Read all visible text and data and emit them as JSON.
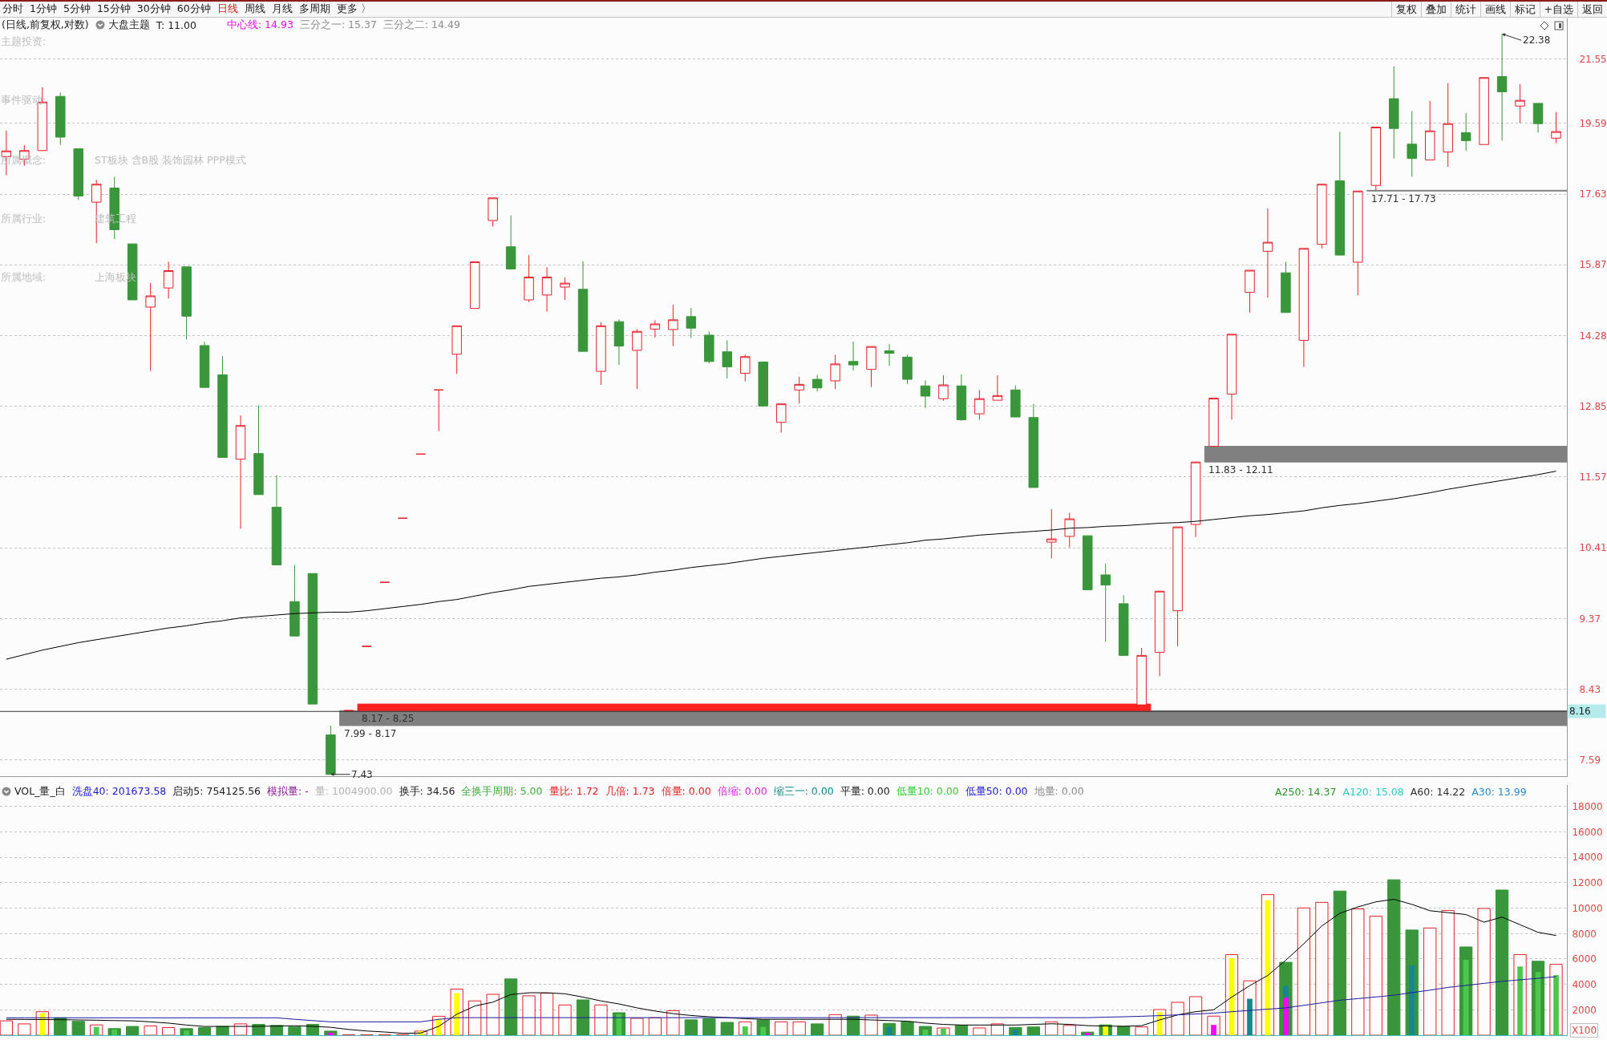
{
  "chart_data": [
    {
      "type": "other",
      "annotations": [
        "分时",
        "1分钟",
        "5分钟",
        "15分钟",
        "30分钟",
        "60分钟",
        "日线",
        "周线",
        "月线",
        "多周期",
        "更多 〉"
      ]
    },
    {
      "type": "other",
      "annotations": [
        "复权",
        "叠加",
        "统计",
        "画线",
        "标记",
        "+自选",
        "返回"
      ]
    },
    {
      "type": "candlestick",
      "title": "(日线,前复权,对数)",
      "categories": [
        null,
        null,
        null,
        null,
        null,
        null,
        null,
        null,
        null,
        null,
        null,
        null,
        null,
        null,
        null,
        null,
        null,
        null,
        null,
        null,
        null,
        null,
        null,
        null,
        null,
        null,
        null,
        null,
        null,
        null,
        null,
        null,
        null,
        null,
        null,
        null,
        null,
        null,
        null,
        null,
        null,
        null,
        null,
        null,
        null,
        null,
        null,
        null,
        null,
        null,
        null,
        null,
        null,
        null,
        null,
        null,
        null,
        null,
        null,
        null,
        null,
        null,
        null,
        null,
        null,
        null,
        null,
        null,
        null,
        null,
        null,
        null,
        null,
        null,
        null,
        null,
        null,
        null,
        null,
        null,
        null,
        null,
        null,
        null,
        null,
        null,
        null
      ],
      "ohlc": [
        [
          18.64,
          19.38,
          18.13,
          18.8
        ],
        [
          18.57,
          18.96,
          18.39,
          18.81
        ],
        [
          18.81,
          20.67,
          18.81,
          20.22
        ],
        [
          20.39,
          20.51,
          18.97,
          19.19
        ],
        [
          18.86,
          18.86,
          17.48,
          17.58
        ],
        [
          17.42,
          18.01,
          16.39,
          17.89
        ],
        [
          17.79,
          18.09,
          16.49,
          16.72
        ],
        [
          16.37,
          16.37,
          15.06,
          15.06
        ],
        [
          14.9,
          15.44,
          13.55,
          15.15
        ],
        [
          15.33,
          15.94,
          15.09,
          15.73
        ],
        [
          15.82,
          15.82,
          14.2,
          14.7
        ],
        [
          14.07,
          14.15,
          13.22,
          13.22
        ],
        [
          13.47,
          13.85,
          11.91,
          11.91
        ],
        [
          11.88,
          12.68,
          10.71,
          12.49
        ],
        [
          11.98,
          12.87,
          11.27,
          11.27
        ],
        [
          11.06,
          11.6,
          10.15,
          10.15
        ],
        [
          9.61,
          10.15,
          9.13,
          9.13
        ],
        [
          10.02,
          10.02,
          8.25,
          8.25
        ],
        [
          7.88,
          7.99,
          7.43,
          7.43
        ],
        [
          8.17,
          8.17,
          8.17,
          8.17
        ],
        [
          8.99,
          8.99,
          8.99,
          8.99
        ],
        [
          9.89,
          9.89,
          9.89,
          9.89
        ],
        [
          10.88,
          10.88,
          10.88,
          10.88
        ],
        [
          11.97,
          11.97,
          11.97,
          11.97
        ],
        [
          13.17,
          13.17,
          12.39,
          13.17
        ],
        [
          13.89,
          14.49,
          13.49,
          14.49
        ],
        [
          14.87,
          15.94,
          14.87,
          15.94
        ],
        [
          16.95,
          17.53,
          16.8,
          17.53
        ],
        [
          16.3,
          17.08,
          15.77,
          15.77
        ],
        [
          15.06,
          16.1,
          15.01,
          15.58
        ],
        [
          15.17,
          15.81,
          14.8,
          15.58
        ],
        [
          15.35,
          15.57,
          15.06,
          15.44
        ],
        [
          15.3,
          15.95,
          13.95,
          13.95
        ],
        [
          13.54,
          14.57,
          13.27,
          14.49
        ],
        [
          14.58,
          14.63,
          13.67,
          14.06
        ],
        [
          13.97,
          14.42,
          13.19,
          14.37
        ],
        [
          14.42,
          14.61,
          14.24,
          14.53
        ],
        [
          14.41,
          14.95,
          14.06,
          14.62
        ],
        [
          14.69,
          14.88,
          14.23,
          14.44
        ],
        [
          14.29,
          14.37,
          13.7,
          13.74
        ],
        [
          13.94,
          14.18,
          13.4,
          13.63
        ],
        [
          13.5,
          13.88,
          13.34,
          13.84
        ],
        [
          13.73,
          13.73,
          12.84,
          12.86
        ],
        [
          12.55,
          12.9,
          12.36,
          12.9
        ],
        [
          13.17,
          13.43,
          12.91,
          13.28
        ],
        [
          13.38,
          13.47,
          13.14,
          13.21
        ],
        [
          13.35,
          13.88,
          13.19,
          13.69
        ],
        [
          13.74,
          14.15,
          13.56,
          13.67
        ],
        [
          13.58,
          14.05,
          13.23,
          14.05
        ],
        [
          13.96,
          14.1,
          13.65,
          13.91
        ],
        [
          13.83,
          13.88,
          13.29,
          13.38
        ],
        [
          13.25,
          13.36,
          12.82,
          13.05
        ],
        [
          13.0,
          13.46,
          12.96,
          13.27
        ],
        [
          13.25,
          13.48,
          12.58,
          12.6
        ],
        [
          12.71,
          13.17,
          12.6,
          13.0
        ],
        [
          12.97,
          13.46,
          12.97,
          13.06
        ],
        [
          13.17,
          13.26,
          12.65,
          12.65
        ],
        [
          12.64,
          12.9,
          11.39,
          11.39
        ],
        [
          10.5,
          11.03,
          10.25,
          10.55
        ],
        [
          10.59,
          10.97,
          10.42,
          10.87
        ],
        [
          10.6,
          10.6,
          9.78,
          9.78
        ],
        [
          10.0,
          10.17,
          9.05,
          9.85
        ],
        [
          9.58,
          9.7,
          8.87,
          8.87
        ],
        [
          8.24,
          8.97,
          8.22,
          8.87
        ],
        [
          8.91,
          9.76,
          8.6,
          9.76
        ],
        [
          9.48,
          10.74,
          8.99,
          10.74
        ],
        [
          10.78,
          11.83,
          10.58,
          11.83
        ],
        [
          12.11,
          13.01,
          12.11,
          13.01
        ],
        [
          13.09,
          14.31,
          12.6,
          14.31
        ],
        [
          15.23,
          15.74,
          14.78,
          15.74
        ],
        [
          16.19,
          17.26,
          15.11,
          16.41
        ],
        [
          15.68,
          15.94,
          14.78,
          14.78
        ],
        [
          14.18,
          16.26,
          13.63,
          16.26
        ],
        [
          16.36,
          17.89,
          16.26,
          17.89
        ],
        [
          17.98,
          19.34,
          16.1,
          16.1
        ],
        [
          15.93,
          17.71,
          15.16,
          17.71
        ],
        [
          17.86,
          19.48,
          17.73,
          19.48
        ],
        [
          20.32,
          21.32,
          18.59,
          19.44
        ],
        [
          18.99,
          19.95,
          18.09,
          18.59
        ],
        [
          18.55,
          20.25,
          18.55,
          19.37
        ],
        [
          18.77,
          20.8,
          18.36,
          19.58
        ],
        [
          19.32,
          19.89,
          18.8,
          19.09
        ],
        [
          18.98,
          20.97,
          18.98,
          20.97
        ],
        [
          21.0,
          22.38,
          19.09,
          20.53
        ],
        [
          20.1,
          20.76,
          19.6,
          20.27
        ],
        [
          20.18,
          20.18,
          19.32,
          19.58
        ],
        [
          19.16,
          19.92,
          19.02,
          19.35
        ]
      ],
      "value_labels": [
        null,
        null,
        null,
        null,
        null,
        null,
        null,
        null,
        null,
        null,
        null,
        null,
        null,
        null,
        null,
        null,
        null,
        null,
        "7.43",
        null,
        null,
        null,
        null,
        null,
        null,
        null,
        null,
        null,
        null,
        null,
        null,
        null,
        null,
        null,
        null,
        null,
        null,
        null,
        null,
        null,
        null,
        null,
        null,
        null,
        null,
        null,
        null,
        null,
        null,
        null,
        null,
        null,
        null,
        null,
        null,
        null,
        null,
        null,
        null,
        null,
        null,
        null,
        null,
        null,
        null,
        null,
        null,
        null,
        null,
        null,
        null,
        null,
        null,
        null,
        null,
        null,
        null,
        null,
        null,
        null,
        null,
        null,
        null,
        "22.38",
        null,
        null,
        null
      ],
      "colors": [
        "#e8202c",
        "#e8202c",
        "#e8202c",
        "#3a963a",
        "#3a963a",
        "#e8202c",
        "#3a963a",
        "#3a963a",
        "#e8202c",
        "#e8202c",
        "#3a963a",
        "#3a963a",
        "#3a963a",
        "#e8202c",
        "#3a963a",
        "#3a963a",
        "#3a963a",
        "#3a963a",
        "#3a963a",
        "#e8202c",
        "#e8202c",
        "#e8202c",
        "#e8202c",
        "#e8202c",
        "#e8202c",
        "#e8202c",
        "#e8202c",
        "#e8202c",
        "#3a963a",
        "#e8202c",
        "#e8202c",
        "#e8202c",
        "#3a963a",
        "#e8202c",
        "#3a963a",
        "#e8202c",
        "#e8202c",
        "#e8202c",
        "#3a963a",
        "#3a963a",
        "#3a963a",
        "#e8202c",
        "#3a963a",
        "#e8202c",
        "#e8202c",
        "#3a963a",
        "#e8202c",
        "#3a963a",
        "#e8202c",
        "#3a963a",
        "#3a963a",
        "#3a963a",
        "#e8202c",
        "#3a963a",
        "#e8202c",
        "#e8202c",
        "#3a963a",
        "#3a963a",
        "#e8202c",
        "#e8202c",
        "#3a963a",
        "#3a963a",
        "#3a963a",
        "#e8202c",
        "#e8202c",
        "#e8202c",
        "#e8202c",
        "#e8202c",
        "#e8202c",
        "#e8202c",
        "#e8202c",
        "#3a963a",
        "#e8202c",
        "#e8202c",
        "#3a963a",
        "#e8202c",
        "#e8202c",
        "#3a963a",
        "#3a963a",
        "#e8202c",
        "#e8202c",
        "#3a963a",
        "#e8202c",
        "#3a963a",
        "#e8202c",
        "#3a963a",
        "#e8202c"
      ],
      "series": [
        {
          "type": "line",
          "color": "#000000",
          "values": [
            8.82,
            8.88,
            8.94,
            8.99,
            9.04,
            9.08,
            9.12,
            9.16,
            9.2,
            9.24,
            9.27,
            9.31,
            9.34,
            9.38,
            9.4,
            9.42,
            9.44,
            9.45,
            9.46,
            9.46,
            9.48,
            9.51,
            9.54,
            9.57,
            9.61,
            9.64,
            9.69,
            9.74,
            9.78,
            9.83,
            9.86,
            9.89,
            9.92,
            9.95,
            9.97,
            10.0,
            10.04,
            10.07,
            10.11,
            10.14,
            10.17,
            10.21,
            10.25,
            10.28,
            10.31,
            10.34,
            10.37,
            10.4,
            10.43,
            10.46,
            10.49,
            10.53,
            10.55,
            10.58,
            10.61,
            10.63,
            10.65,
            10.67,
            10.69,
            10.72,
            10.73,
            10.75,
            10.76,
            10.78,
            10.8,
            10.81,
            10.83,
            10.86,
            10.89,
            10.92,
            10.94,
            10.97,
            11.0,
            11.05,
            11.09,
            11.12,
            11.16,
            11.2,
            11.25,
            11.3,
            11.36,
            11.41,
            11.46,
            11.51,
            11.56,
            11.61,
            11.67
          ]
        }
      ],
      "ylim": [
        7.41,
        22.9
      ],
      "yticks": [
        7.59,
        8.43,
        9.37,
        10.41,
        11.57,
        12.85,
        14.28,
        15.87,
        17.63,
        19.59,
        21.55
      ],
      "log": true,
      "grid": "y",
      "tick_labels": "y",
      "bands": [
        {
          "axis": "y",
          "from": 7.99,
          "to": 8.17,
          "label": "7.99 - 8.17",
          "color": "#808080"
        },
        {
          "axis": "y",
          "from": 8.17,
          "to": 8.25,
          "label": "8.17 - 8.25",
          "color": "#ff2020"
        },
        {
          "axis": "y",
          "from": 11.83,
          "to": 12.11,
          "label": "11.83 - 12.11",
          "color": "#808080"
        },
        {
          "axis": "y",
          "from": 17.71,
          "to": 17.73,
          "label": "17.71 - 17.73",
          "color": "#808080"
        }
      ],
      "ref_lines": [
        {
          "axis": "y",
          "value": 8.16,
          "label": "8.16",
          "color": "#303030"
        }
      ],
      "annotations": [
        "大盘主题",
        "T: 11.00",
        "中心线: 14.93",
        "三分之一: 15.37",
        "三分之二: 14.49",
        "主题投资:",
        "事件驱动:",
        "所属概念:",
        "ST板块 含B股 装饰园林 PPP模式",
        "所属行业:",
        "建筑工程",
        "所属地域:",
        "上海板块"
      ]
    },
    {
      "type": "bar",
      "title": "VOL_量_白",
      "ylabel": "X100",
      "categories": [
        null,
        null,
        null,
        null,
        null,
        null,
        null,
        null,
        null,
        null,
        null,
        null,
        null,
        null,
        null,
        null,
        null,
        null,
        null,
        null,
        null,
        null,
        null,
        null,
        null,
        null,
        null,
        null,
        null,
        null,
        null,
        null,
        null,
        null,
        null,
        null,
        null,
        null,
        null,
        null,
        null,
        null,
        null,
        null,
        null,
        null,
        null,
        null,
        null,
        null,
        null,
        null,
        null,
        null,
        null,
        null,
        null,
        null,
        null,
        null,
        null,
        null,
        null,
        null,
        null,
        null,
        null,
        null,
        null,
        null,
        null,
        null,
        null,
        null,
        null,
        null,
        null,
        null,
        null,
        null,
        null,
        null,
        null,
        null,
        null,
        null,
        null
      ],
      "series": [
        {
          "colors": [
            "#e8202c",
            "#e8202c",
            "#e8202c",
            "#3a963a",
            "#3a963a",
            "#e8202c",
            "#3a963a",
            "#3a963a",
            "#e8202c",
            "#e8202c",
            "#3a963a",
            "#3a963a",
            "#3a963a",
            "#e8202c",
            "#3a963a",
            "#3a963a",
            "#3a963a",
            "#3a963a",
            "#3a963a",
            "#e8202c",
            "#e8202c",
            "#e8202c",
            "#e8202c",
            "#e8202c",
            "#e8202c",
            "#e8202c",
            "#e8202c",
            "#e8202c",
            "#3a963a",
            "#e8202c",
            "#e8202c",
            "#e8202c",
            "#3a963a",
            "#e8202c",
            "#3a963a",
            "#e8202c",
            "#e8202c",
            "#e8202c",
            "#3a963a",
            "#3a963a",
            "#3a963a",
            "#e8202c",
            "#3a963a",
            "#e8202c",
            "#e8202c",
            "#3a963a",
            "#e8202c",
            "#3a963a",
            "#e8202c",
            "#3a963a",
            "#3a963a",
            "#3a963a",
            "#e8202c",
            "#3a963a",
            "#e8202c",
            "#e8202c",
            "#3a963a",
            "#3a963a",
            "#e8202c",
            "#e8202c",
            "#3a963a",
            "#3a963a",
            "#3a963a",
            "#e8202c",
            "#e8202c",
            "#e8202c",
            "#e8202c",
            "#e8202c",
            "#e8202c",
            "#e8202c",
            "#e8202c",
            "#3a963a",
            "#e8202c",
            "#e8202c",
            "#3a963a",
            "#e8202c",
            "#e8202c",
            "#3a963a",
            "#3a963a",
            "#e8202c",
            "#e8202c",
            "#3a963a",
            "#e8202c",
            "#3a963a",
            "#e8202c",
            "#3a963a",
            "#e8202c"
          ],
          "values": [
            1130,
            890,
            1850,
            1370,
            1090,
            810,
            520,
            690,
            730,
            600,
            520,
            600,
            690,
            890,
            850,
            770,
            650,
            850,
            320,
            40,
            30,
            30,
            40,
            320,
            1490,
            3630,
            2700,
            3220,
            4430,
            3100,
            3310,
            2380,
            2780,
            2380,
            1770,
            1330,
            1370,
            1930,
            1210,
            1290,
            1010,
            1050,
            1210,
            1050,
            1050,
            890,
            1620,
            1500,
            1580,
            930,
            1050,
            690,
            570,
            770,
            570,
            890,
            610,
            650,
            1050,
            770,
            240,
            810,
            690,
            650,
            2020,
            2590,
            3030,
            1500,
            6340,
            4280,
            11070,
            5740,
            10020,
            10460,
            11350,
            9940,
            9370,
            12240,
            8280,
            8440,
            9820,
            6950,
            9980,
            11430,
            6340,
            5820,
            5580
          ]
        },
        {
          "colors": [
            null,
            null,
            "#ffff00",
            null,
            null,
            "#4cc84c",
            "#4cc84c",
            null,
            null,
            null,
            "#4cc84c",
            null,
            null,
            null,
            null,
            null,
            null,
            null,
            "#ff00ff",
            null,
            null,
            null,
            null,
            "#ffff00",
            "#ffff00",
            "#ffff00",
            null,
            null,
            null,
            null,
            null,
            null,
            null,
            null,
            "#4cc84c",
            null,
            null,
            null,
            null,
            null,
            null,
            "#4cc84c",
            "#4cc84c",
            null,
            null,
            null,
            null,
            null,
            null,
            "#17868e",
            null,
            "#4cc84c",
            "#4cc84c",
            null,
            null,
            null,
            "#17868e",
            null,
            null,
            null,
            "#ff00ff",
            "#ffff00",
            null,
            null,
            "#ffff00",
            null,
            null,
            "#ff00ff",
            "#ffff00",
            "#17868e",
            "#ffff00",
            "#17868e",
            null,
            null,
            null,
            null,
            null,
            null,
            "#17868e",
            null,
            null,
            "#4cc84c",
            null,
            null,
            "#4cc84c",
            "#4cc84c",
            "#4cc84c"
          ],
          "values": [
            null,
            null,
            1730,
            null,
            null,
            650,
            440,
            null,
            null,
            null,
            360,
            null,
            null,
            null,
            null,
            null,
            null,
            null,
            200,
            null,
            null,
            null,
            null,
            320,
            1290,
            3310,
            null,
            null,
            null,
            null,
            null,
            null,
            null,
            null,
            1650,
            null,
            null,
            null,
            null,
            null,
            null,
            690,
            650,
            null,
            null,
            null,
            null,
            null,
            null,
            650,
            null,
            440,
            520,
            null,
            null,
            null,
            440,
            null,
            null,
            null,
            200,
            760,
            null,
            null,
            1820,
            null,
            null,
            810,
            6060,
            2870,
            10630,
            3880,
            null,
            null,
            null,
            null,
            null,
            null,
            5490,
            null,
            null,
            5940,
            null,
            null,
            5410,
            4970,
            4730
          ]
        },
        {
          "colors": [
            null,
            null,
            null,
            null,
            null,
            null,
            null,
            null,
            null,
            null,
            null,
            null,
            null,
            null,
            null,
            null,
            null,
            null,
            null,
            null,
            null,
            null,
            null,
            null,
            null,
            null,
            null,
            null,
            null,
            null,
            null,
            null,
            null,
            null,
            null,
            null,
            null,
            null,
            null,
            null,
            null,
            null,
            null,
            null,
            null,
            null,
            null,
            null,
            null,
            null,
            null,
            null,
            null,
            null,
            null,
            null,
            null,
            null,
            null,
            null,
            null,
            null,
            null,
            null,
            null,
            null,
            null,
            null,
            null,
            null,
            null,
            "#ff00ff",
            null,
            null,
            null,
            null,
            null,
            null,
            null,
            null,
            null,
            null,
            null,
            null,
            null,
            null,
            null
          ],
          "values": [
            null,
            null,
            null,
            null,
            null,
            null,
            null,
            null,
            null,
            null,
            null,
            null,
            null,
            null,
            null,
            null,
            null,
            null,
            null,
            null,
            null,
            null,
            null,
            null,
            null,
            null,
            null,
            null,
            null,
            null,
            null,
            null,
            null,
            null,
            null,
            null,
            null,
            null,
            null,
            null,
            null,
            null,
            null,
            null,
            null,
            null,
            null,
            null,
            null,
            null,
            null,
            null,
            null,
            null,
            null,
            null,
            null,
            null,
            null,
            null,
            null,
            null,
            null,
            null,
            null,
            null,
            null,
            null,
            null,
            null,
            null,
            2950,
            null,
            null,
            null,
            null,
            null,
            null,
            null,
            null,
            null,
            null,
            null,
            null,
            null,
            null,
            null
          ]
        },
        {
          "type": "line",
          "color": "#000000",
          "values": [
            1250,
            1240,
            1230,
            1220,
            1200,
            1180,
            1150,
            1130,
            1050,
            950,
            800,
            690,
            690,
            690,
            700,
            720,
            740,
            700,
            620,
            450,
            330,
            250,
            150,
            170,
            700,
            1650,
            2300,
            2600,
            3200,
            3340,
            3340,
            3260,
            3000,
            2700,
            2460,
            2150,
            1900,
            1700,
            1550,
            1450,
            1380,
            1300,
            1250,
            1250,
            1250,
            1250,
            1250,
            1250,
            1200,
            1150,
            1100,
            950,
            850,
            800,
            800,
            800,
            800,
            850,
            900,
            850,
            750,
            720,
            700,
            750,
            1200,
            1600,
            1850,
            2000,
            3000,
            3900,
            4700,
            5900,
            7200,
            8600,
            9600,
            10100,
            10500,
            10700,
            10300,
            9800,
            9650,
            9500,
            8900,
            9300,
            8700,
            8100,
            7850
          ]
        },
        {
          "type": "line",
          "color": "#1a1aa0",
          "values": [
            1370,
            1370,
            1370,
            1370,
            1370,
            1370,
            1370,
            1370,
            1370,
            1370,
            1370,
            1370,
            1370,
            1370,
            1370,
            1370,
            1250,
            1150,
            1050,
            1050,
            1050,
            1050,
            1050,
            1050,
            1250,
            1380,
            1380,
            1380,
            1380,
            1380,
            1380,
            1380,
            1380,
            1380,
            1380,
            1380,
            1380,
            1380,
            1380,
            1380,
            1380,
            1380,
            1380,
            1380,
            1380,
            1380,
            1380,
            1380,
            1380,
            1380,
            1380,
            1380,
            1380,
            1380,
            1380,
            1380,
            1380,
            1380,
            1380,
            1380,
            1380,
            1420,
            1450,
            1490,
            1540,
            1600,
            1670,
            1740,
            1850,
            1950,
            2050,
            2150,
            2350,
            2550,
            2750,
            2880,
            3010,
            3150,
            3350,
            3550,
            3760,
            3920,
            4080,
            4240,
            4360,
            4480,
            4610
          ]
        }
      ],
      "ylim": [
        0,
        19700
      ],
      "yticks": [
        2000,
        4000,
        6000,
        8000,
        10000,
        12000,
        14000,
        16000,
        18000
      ],
      "grid": "y",
      "tick_labels": "y",
      "annotations": [
        "洗盘40: 201673.58",
        "启动5: 754125.56",
        "模拟量: -",
        "量: 1004900.00",
        "换手: 34.56",
        "全换手周期: 5.00",
        "量比: 1.72",
        "几倍: 1.73",
        "倍量: 0.00",
        "倍缩: 0.00",
        "缩三一: 0.00",
        "平量: 0.00",
        "低量10: 0.00",
        "低量50: 0.00",
        "地量: 0.00",
        "A250: 14.37",
        "A120: 15.08",
        "A60: 14.22",
        "A30: 13.99"
      ]
    }
  ]
}
